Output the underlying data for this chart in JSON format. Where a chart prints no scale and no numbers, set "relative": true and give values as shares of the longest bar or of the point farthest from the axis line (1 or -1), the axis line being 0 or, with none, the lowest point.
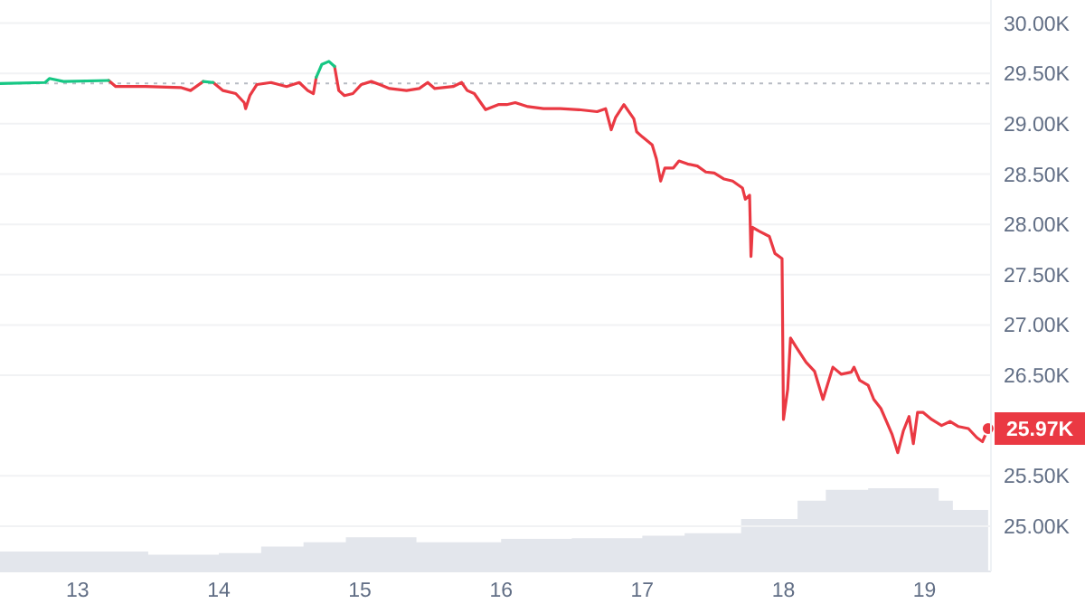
{
  "chart_data": [
    {
      "type": "line",
      "xlim": [
        12.45,
        19.47
      ],
      "xticks": [
        13,
        14,
        15,
        16,
        17,
        18,
        19
      ],
      "ylim": [
        24550,
        30230
      ],
      "yticks": [
        {
          "value": 25000,
          "label": "25.00K"
        },
        {
          "value": 25500,
          "label": "25.50K"
        },
        {
          "value": 26500,
          "label": "26.50K"
        },
        {
          "value": 27000,
          "label": "27.00K"
        },
        {
          "value": 27500,
          "label": "27.50K"
        },
        {
          "value": 28000,
          "label": "28.00K"
        },
        {
          "value": 28500,
          "label": "28.50K"
        },
        {
          "value": 29000,
          "label": "29.00K"
        },
        {
          "value": 29500,
          "label": "29.50K"
        },
        {
          "value": 30000,
          "label": "30.00K"
        }
      ],
      "grid": "y",
      "ref_lines": [
        {
          "axis": "y",
          "value": 29400,
          "label": null,
          "color": "#b8bcc4",
          "line_style": "dotted"
        }
      ],
      "annotations": [
        {
          "text": "25.97K",
          "x": 19.45,
          "y": 25970
        }
      ],
      "series": [
        {
          "color": "#ea3943",
          "x": [
            13.22,
            13.27,
            13.48,
            13.73,
            13.8,
            13.89,
            13.92,
            13.96,
            14.03,
            14.12,
            14.18,
            14.19,
            14.22,
            14.27,
            14.37,
            14.48,
            14.57,
            14.63,
            14.67,
            14.69,
            14.75,
            14.82,
            14.85,
            14.89,
            14.95,
            15.01,
            15.08,
            15.14,
            15.21,
            15.33,
            15.42,
            15.48,
            15.53,
            15.66,
            15.72,
            15.76,
            15.81,
            15.89,
            15.98,
            16.04,
            16.1,
            16.19,
            16.3,
            16.42,
            16.55,
            16.68,
            16.74,
            16.78,
            16.81,
            16.87,
            16.94,
            16.96,
            17.0,
            17.07,
            17.1,
            17.13,
            17.16,
            17.22,
            17.26,
            17.32,
            17.39,
            17.45,
            17.51,
            17.58,
            17.64,
            17.71,
            17.73,
            17.76,
            17.77,
            17.78,
            17.83,
            17.9,
            17.94,
            17.99,
            18.0,
            18.03,
            18.05,
            18.09,
            18.16,
            18.22,
            18.28,
            18.35,
            18.41,
            18.48,
            18.5,
            18.54,
            18.6,
            18.64,
            18.69,
            18.73,
            18.77,
            18.81,
            18.85,
            18.89,
            18.92,
            18.95,
            18.99,
            19.05,
            19.12,
            19.18,
            19.24,
            19.31,
            19.37,
            19.41,
            19.45
          ],
          "values": [
            29430,
            29370,
            29370,
            29360,
            29330,
            29420,
            null,
            29410,
            29330,
            29300,
            29210,
            29150,
            29280,
            29390,
            29410,
            29370,
            29410,
            29330,
            29300,
            29460,
            null,
            29570,
            29330,
            29280,
            29300,
            29390,
            29420,
            29390,
            29350,
            29330,
            29350,
            29410,
            29350,
            29370,
            29410,
            29330,
            29300,
            29140,
            29190,
            29190,
            29210,
            29170,
            29150,
            29150,
            29140,
            29120,
            29150,
            28940,
            29060,
            29190,
            29050,
            28920,
            28870,
            28790,
            28650,
            28430,
            28560,
            28560,
            28630,
            28600,
            28580,
            28520,
            28510,
            28450,
            28430,
            28360,
            28250,
            28290,
            27680,
            27970,
            27930,
            27880,
            27710,
            27660,
            26060,
            26360,
            26870,
            26780,
            26630,
            26540,
            26260,
            26580,
            26510,
            26530,
            26580,
            26450,
            26400,
            26260,
            26170,
            26040,
            25910,
            25730,
            25950,
            26090,
            25820,
            26130,
            26130,
            26060,
            26000,
            26040,
            25990,
            25970,
            25880,
            25840,
            25970
          ]
        },
        {
          "color": "#16c784",
          "x": [
            12.45,
            12.77,
            12.8,
            12.9,
            13.22,
            13.5,
            13.89,
            13.96,
            14.5,
            14.69,
            14.73,
            14.78,
            14.82
          ],
          "values": [
            29400,
            29410,
            29450,
            29420,
            29430,
            null,
            29420,
            29410,
            null,
            29460,
            29590,
            29620,
            29570
          ]
        }
      ]
    },
    {
      "type": "area",
      "relative": true,
      "xlim": [
        12.45,
        19.47
      ],
      "series": [
        {
          "color": "#e3e6ec",
          "x": [
            12.45,
            12.9,
            13.5,
            14.0,
            14.3,
            14.6,
            14.9,
            15.2,
            15.4,
            16.0,
            16.5,
            17.0,
            17.3,
            17.6,
            17.7,
            17.95,
            18.1,
            18.3,
            18.6,
            18.95,
            19.1,
            19.2,
            19.45
          ],
          "values": [
            0.24,
            0.24,
            0.2,
            0.22,
            0.3,
            0.35,
            0.41,
            0.41,
            0.35,
            0.39,
            0.4,
            0.43,
            0.46,
            0.46,
            0.63,
            0.63,
            0.85,
            0.98,
            1,
            1,
            0.85,
            0.74,
            0.57
          ]
        }
      ]
    }
  ]
}
